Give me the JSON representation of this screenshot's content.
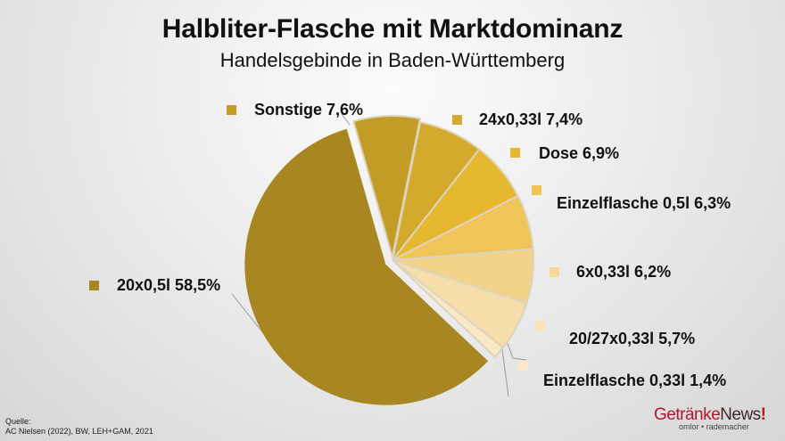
{
  "header": {
    "title": "Halbliter-Flasche mit Marktdominanz",
    "subtitle": "Handelsgebinde in Baden-Württemberg"
  },
  "source": {
    "label": "Quelle:",
    "text": "AC Nielsen (2022), BW, LEH+GAM, 2021"
  },
  "logo": {
    "part1": "Getränke",
    "part2": "News",
    "part3": "!",
    "tagline_a": "omlor",
    "tagline_sep": "•",
    "tagline_b": "rademacher"
  },
  "labels": [
    {
      "text": "Sonstige 7,6%"
    },
    {
      "text": "24x0,33l 7,4%"
    },
    {
      "text": "Dose 6,9%"
    },
    {
      "text": "Einzelflasche 0,5l 6,3%"
    },
    {
      "text": "6x0,33l 6,2%"
    },
    {
      "text": "20/27x0,33l 5,7%"
    },
    {
      "text": "Einzelflasche 0,33l 1,4%"
    },
    {
      "text": "20x0,5l 58,5%"
    }
  ],
  "chart_data": {
    "type": "pie",
    "title": "Halbliter-Flasche mit Marktdominanz",
    "subtitle": "Handelsgebinde in Baden-Württemberg",
    "categories": [
      "Sonstige",
      "24x0,33l",
      "Dose",
      "Einzelflasche 0,5l",
      "6x0,33l",
      "20/27x0,33l",
      "Einzelflasche 0,33l",
      "20x0,5l"
    ],
    "values": [
      7.6,
      7.4,
      6.9,
      6.3,
      6.2,
      5.7,
      1.4,
      58.5
    ],
    "unit": "%",
    "colors": [
      "#c39c26",
      "#d4aa2c",
      "#e6b82f",
      "#efc55a",
      "#f2d389",
      "#f5deaa",
      "#f8e8c6",
      "#a88722"
    ],
    "exploded": [
      "20x0,5l",
      "Sonstige"
    ],
    "legend_position": "labels around pie",
    "source": "AC Nielsen (2022), BW, LEH+GAM, 2021"
  }
}
